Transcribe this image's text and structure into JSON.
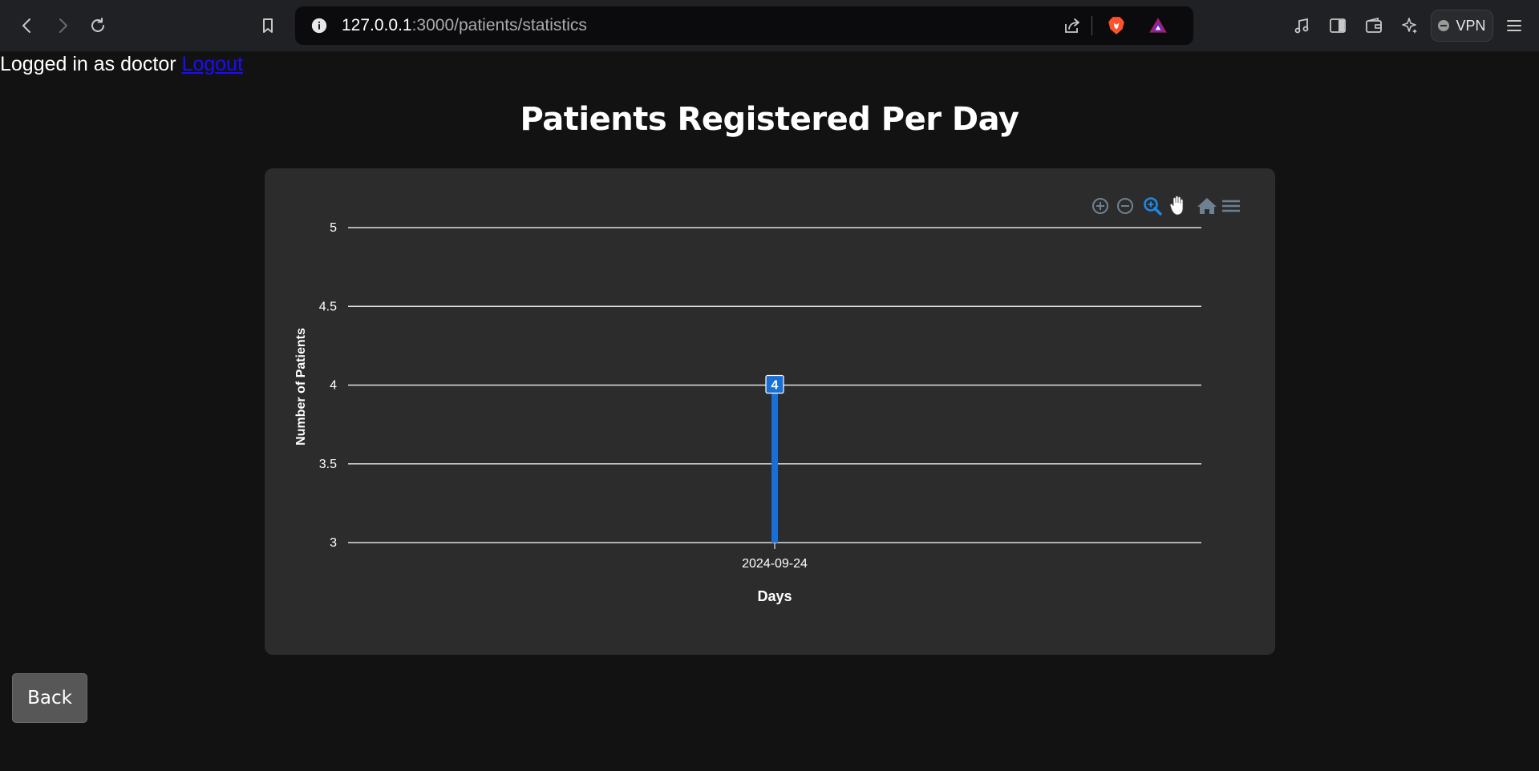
{
  "browser": {
    "url_host": "127.0.0.1",
    "url_path": ":3000/patients/statistics",
    "vpn_label": "VPN",
    "icons": [
      "back-icon",
      "forward-icon",
      "reload-icon",
      "bookmark-icon",
      "site-info-icon",
      "share-icon",
      "brave-shield-icon",
      "brave-rewards-icon",
      "media-icon",
      "sidebar-icon",
      "wallet-icon",
      "leo-ai-icon",
      "menu-icon"
    ]
  },
  "header": {
    "login_text": "Logged in as doctor ",
    "logout_label": "Logout"
  },
  "page": {
    "title": "Patients Registered Per Day",
    "back_label": "Back"
  },
  "chart_toolbar": {
    "icons": [
      "zoom-in-icon",
      "zoom-out-icon",
      "selection-zoom-icon",
      "pan-icon",
      "reset-home-icon",
      "menu-icon"
    ],
    "active_icon": "selection-zoom-icon"
  },
  "colors": {
    "bar": "#1a6fd6",
    "active_tool": "#1e88e5",
    "inactive_tool": "#6e8192"
  },
  "chart_data": {
    "type": "bar",
    "categories": [
      "2024-09-24"
    ],
    "series": [
      {
        "values": [
          4
        ]
      }
    ],
    "data_labels": [
      "4"
    ],
    "xlabel": "Days",
    "ylabel": "Number of Patients",
    "ylim": [
      3,
      5
    ],
    "yticks": [
      3,
      3.5,
      4,
      4.5,
      5
    ],
    "grid": true,
    "legend": "none"
  }
}
